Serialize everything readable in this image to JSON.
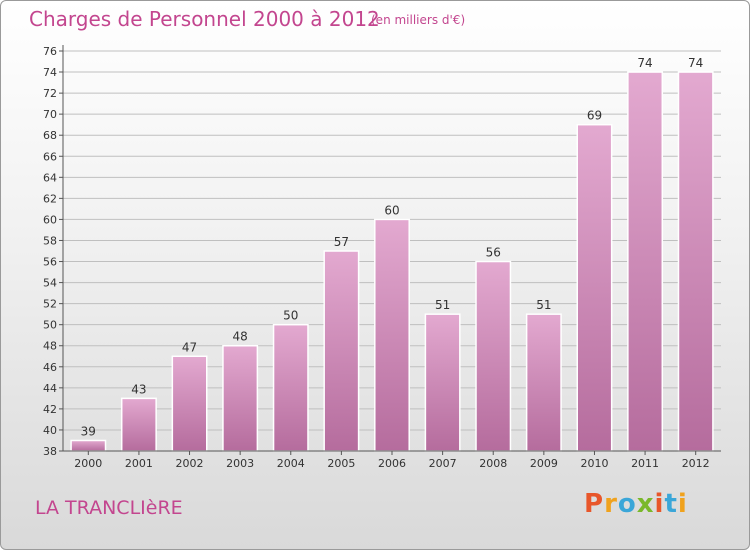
{
  "header": {
    "title": "Charges de Personnel 2000 à 2012",
    "unit": "(en milliers d'€)"
  },
  "footer": {
    "commune": "LA TRANCLIèRE",
    "logo_text": "Proxiti",
    "logo_colors": [
      "#e8562a",
      "#f0a21d",
      "#3aa6d8",
      "#7ab82b",
      "#e8562a",
      "#3aa6d8",
      "#f0a21d"
    ]
  },
  "colors": {
    "title": "#c3468f",
    "bar_top": "#e3a9d0",
    "bar_bottom": "#b56c9d",
    "grid": "#bfbfbf",
    "axis": "#555555",
    "background_top": "#ffffff",
    "background_bottom": "#d9d9d9"
  },
  "chart_data": {
    "type": "bar",
    "title": "Charges de Personnel 2000 à 2012",
    "subtitle": "(en milliers d'€)",
    "xlabel": "",
    "ylabel": "",
    "categories": [
      "2000",
      "2001",
      "2002",
      "2003",
      "2004",
      "2005",
      "2006",
      "2007",
      "2008",
      "2009",
      "2010",
      "2011",
      "2012"
    ],
    "values": [
      39,
      43,
      47,
      48,
      50,
      57,
      60,
      51,
      56,
      51,
      69,
      74,
      74
    ],
    "ylim": [
      38,
      76
    ],
    "yticks": [
      38,
      40,
      42,
      44,
      46,
      48,
      50,
      52,
      54,
      56,
      58,
      60,
      62,
      64,
      66,
      68,
      70,
      72,
      74,
      76
    ],
    "grid": true,
    "legend": "none"
  }
}
